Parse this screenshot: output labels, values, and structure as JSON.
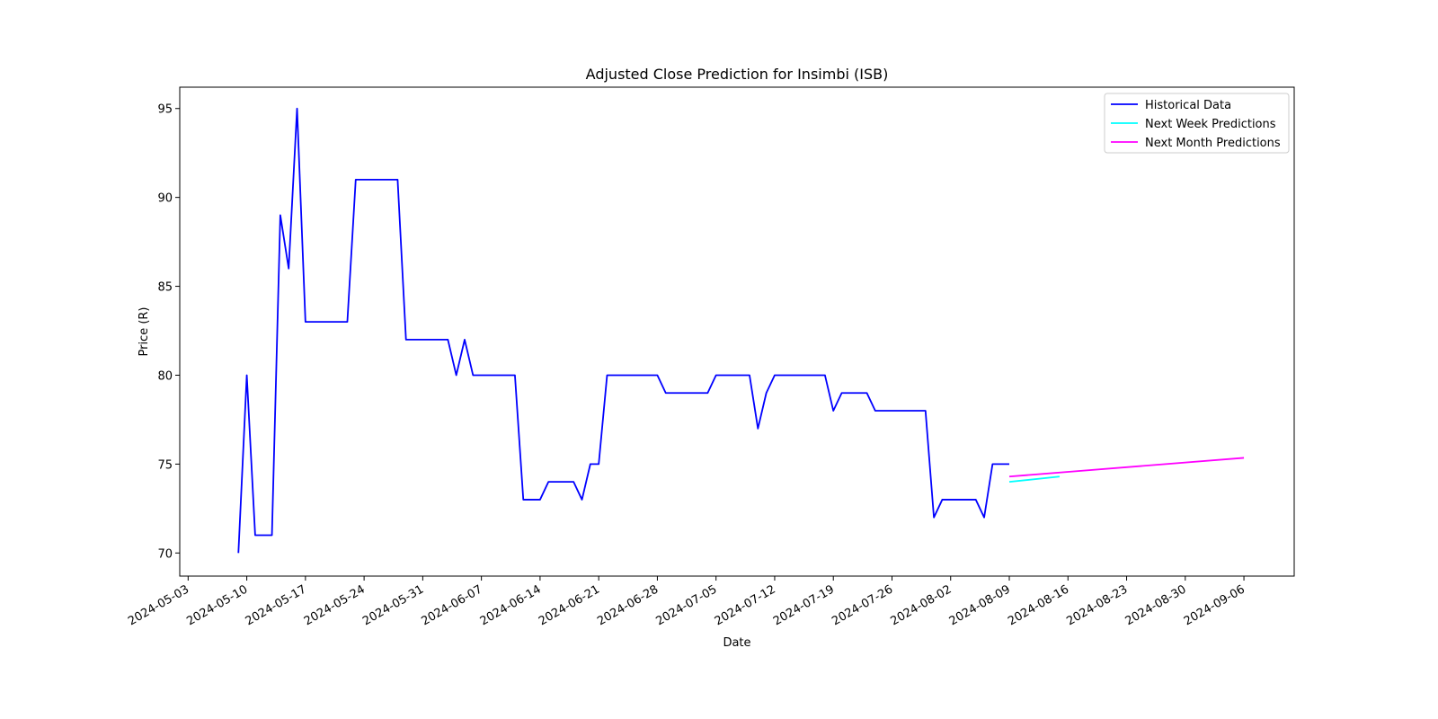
{
  "chart_data": {
    "type": "line",
    "title": "Adjusted Close Prediction for Insimbi (ISB)",
    "xlabel": "Date",
    "ylabel": "Price (R)",
    "xlim": [
      "2024-05-02",
      "2024-09-12"
    ],
    "ylim": [
      68.7,
      96.2
    ],
    "x_ticks": [
      "2024-05-03",
      "2024-05-10",
      "2024-05-17",
      "2024-05-24",
      "2024-05-31",
      "2024-06-07",
      "2024-06-14",
      "2024-06-21",
      "2024-06-28",
      "2024-07-05",
      "2024-07-12",
      "2024-07-19",
      "2024-07-26",
      "2024-08-02",
      "2024-08-09",
      "2024-08-16",
      "2024-08-23",
      "2024-08-30",
      "2024-09-06"
    ],
    "y_ticks": [
      70,
      75,
      80,
      85,
      90,
      95
    ],
    "grid": false,
    "legend_position": "top-right",
    "series": [
      {
        "name": "Historical Data",
        "color": "#0000ff",
        "points": [
          [
            "2024-05-09",
            70
          ],
          [
            "2024-05-10",
            80
          ],
          [
            "2024-05-11",
            71
          ],
          [
            "2024-05-12",
            71
          ],
          [
            "2024-05-13",
            71
          ],
          [
            "2024-05-14",
            89
          ],
          [
            "2024-05-15",
            86
          ],
          [
            "2024-05-16",
            95
          ],
          [
            "2024-05-17",
            83
          ],
          [
            "2024-05-18",
            83
          ],
          [
            "2024-05-19",
            83
          ],
          [
            "2024-05-20",
            83
          ],
          [
            "2024-05-21",
            83
          ],
          [
            "2024-05-22",
            83
          ],
          [
            "2024-05-23",
            91
          ],
          [
            "2024-05-24",
            91
          ],
          [
            "2024-05-25",
            91
          ],
          [
            "2024-05-26",
            91
          ],
          [
            "2024-05-27",
            91
          ],
          [
            "2024-05-28",
            91
          ],
          [
            "2024-05-29",
            82
          ],
          [
            "2024-05-30",
            82
          ],
          [
            "2024-05-31",
            82
          ],
          [
            "2024-06-01",
            82
          ],
          [
            "2024-06-02",
            82
          ],
          [
            "2024-06-03",
            82
          ],
          [
            "2024-06-04",
            80
          ],
          [
            "2024-06-05",
            82
          ],
          [
            "2024-06-06",
            80
          ],
          [
            "2024-06-07",
            80
          ],
          [
            "2024-06-08",
            80
          ],
          [
            "2024-06-09",
            80
          ],
          [
            "2024-06-10",
            80
          ],
          [
            "2024-06-11",
            80
          ],
          [
            "2024-06-12",
            73
          ],
          [
            "2024-06-13",
            73
          ],
          [
            "2024-06-14",
            73
          ],
          [
            "2024-06-15",
            74
          ],
          [
            "2024-06-16",
            74
          ],
          [
            "2024-06-17",
            74
          ],
          [
            "2024-06-18",
            74
          ],
          [
            "2024-06-19",
            73
          ],
          [
            "2024-06-20",
            75
          ],
          [
            "2024-06-21",
            75
          ],
          [
            "2024-06-22",
            80
          ],
          [
            "2024-06-23",
            80
          ],
          [
            "2024-06-24",
            80
          ],
          [
            "2024-06-25",
            80
          ],
          [
            "2024-06-26",
            80
          ],
          [
            "2024-06-27",
            80
          ],
          [
            "2024-06-28",
            80
          ],
          [
            "2024-06-29",
            79
          ],
          [
            "2024-06-30",
            79
          ],
          [
            "2024-07-01",
            79
          ],
          [
            "2024-07-02",
            79
          ],
          [
            "2024-07-03",
            79
          ],
          [
            "2024-07-04",
            79
          ],
          [
            "2024-07-05",
            80
          ],
          [
            "2024-07-06",
            80
          ],
          [
            "2024-07-07",
            80
          ],
          [
            "2024-07-08",
            80
          ],
          [
            "2024-07-09",
            80
          ],
          [
            "2024-07-10",
            77
          ],
          [
            "2024-07-11",
            79
          ],
          [
            "2024-07-12",
            80
          ],
          [
            "2024-07-13",
            80
          ],
          [
            "2024-07-14",
            80
          ],
          [
            "2024-07-15",
            80
          ],
          [
            "2024-07-16",
            80
          ],
          [
            "2024-07-17",
            80
          ],
          [
            "2024-07-18",
            80
          ],
          [
            "2024-07-19",
            78
          ],
          [
            "2024-07-20",
            79
          ],
          [
            "2024-07-21",
            79
          ],
          [
            "2024-07-22",
            79
          ],
          [
            "2024-07-23",
            79
          ],
          [
            "2024-07-24",
            78
          ],
          [
            "2024-07-25",
            78
          ],
          [
            "2024-07-26",
            78
          ],
          [
            "2024-07-27",
            78
          ],
          [
            "2024-07-28",
            78
          ],
          [
            "2024-07-29",
            78
          ],
          [
            "2024-07-30",
            78
          ],
          [
            "2024-07-31",
            72
          ],
          [
            "2024-08-01",
            73
          ],
          [
            "2024-08-02",
            73
          ],
          [
            "2024-08-03",
            73
          ],
          [
            "2024-08-04",
            73
          ],
          [
            "2024-08-05",
            73
          ],
          [
            "2024-08-06",
            72
          ],
          [
            "2024-08-07",
            75
          ],
          [
            "2024-08-08",
            75
          ],
          [
            "2024-08-09",
            75
          ]
        ]
      },
      {
        "name": "Next Week Predictions",
        "color": "#00ffff",
        "points": [
          [
            "2024-08-09",
            74.0
          ],
          [
            "2024-08-15",
            74.3
          ]
        ]
      },
      {
        "name": "Next Month Predictions",
        "color": "#ff00ff",
        "points": [
          [
            "2024-08-09",
            74.3
          ],
          [
            "2024-09-06",
            75.35
          ]
        ]
      }
    ]
  }
}
